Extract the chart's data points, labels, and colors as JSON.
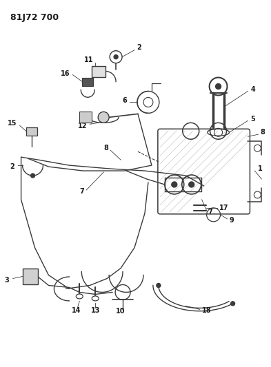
{
  "title": "81J72 700",
  "bg_color": "#ffffff",
  "line_color": "#3a3a3a",
  "label_color": "#1a1a1a",
  "title_fontsize": 9,
  "label_fontsize": 7,
  "fig_width": 3.93,
  "fig_height": 5.33,
  "dpi": 100
}
